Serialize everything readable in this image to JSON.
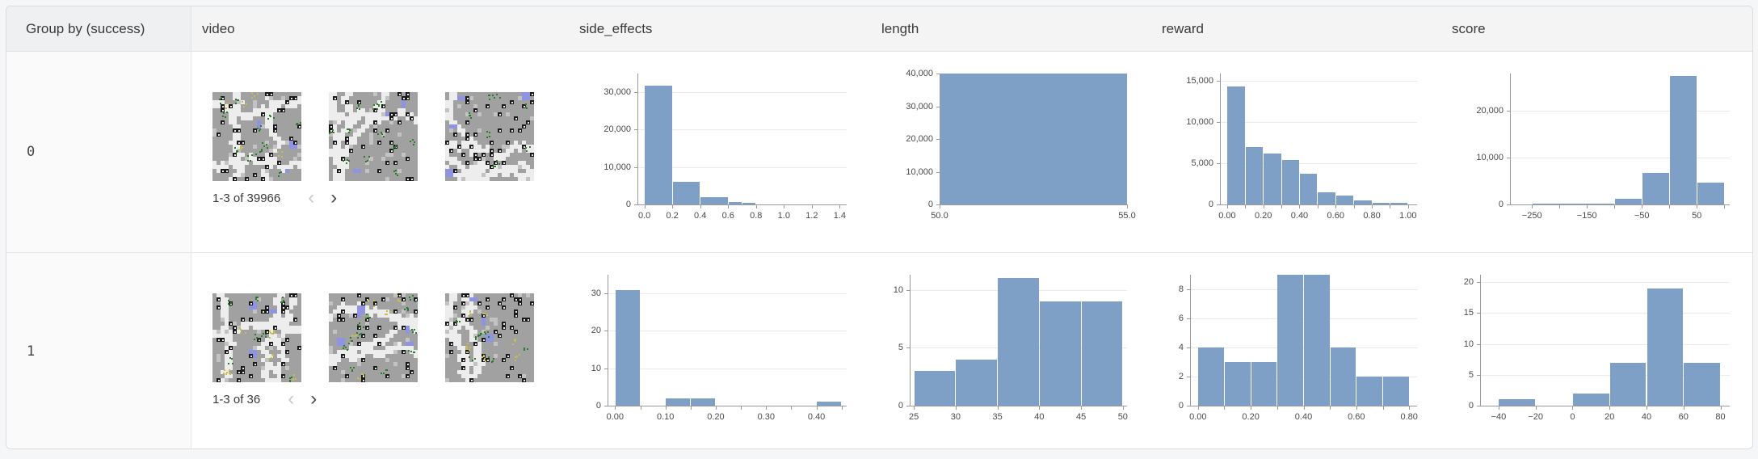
{
  "table": {
    "columns": [
      "Group by (success)",
      "video",
      "side_effects",
      "length",
      "reward",
      "score"
    ],
    "rows": [
      {
        "group": "0",
        "video": {
          "pagination": "1-3 of 39966",
          "thumbnails": 3,
          "prev_enabled": false,
          "next_enabled": true
        }
      },
      {
        "group": "1",
        "video": {
          "pagination": "1-3 of 36",
          "thumbnails": 3,
          "prev_enabled": false,
          "next_enabled": true
        }
      }
    ]
  },
  "icons": {
    "prev_page": "‹",
    "next_page": "›"
  },
  "colors": {
    "histogram_bar": "#7fa0c6",
    "axis": "#9a9a9a",
    "gridline": "#ebebeb",
    "group_column_bg": "#fafafa",
    "header_bg": "#f4f4f5"
  },
  "chart_data": [
    {
      "type": "bar",
      "group": "0",
      "column": "side_effects",
      "bins": [
        [
          0.0,
          0.2,
          31700
        ],
        [
          0.2,
          0.4,
          6100
        ],
        [
          0.4,
          0.6,
          2000
        ],
        [
          0.6,
          0.7,
          650
        ],
        [
          0.7,
          0.8,
          430
        ]
      ],
      "xlim": [
        -0.05,
        1.45
      ],
      "ylim": [
        0,
        35000
      ],
      "xticks": {
        "values": [
          0.0,
          0.2,
          0.4,
          0.6,
          0.8,
          1.0,
          1.2,
          1.4
        ],
        "labels": [
          "0.0",
          "0.2",
          "0.4",
          "0.6",
          "0.8",
          "1.0",
          "1.2",
          "1.4"
        ]
      },
      "yticks": {
        "values": [
          0,
          10000,
          20000,
          30000
        ],
        "labels": [
          "0",
          "10,000",
          "20,000",
          "30,000"
        ]
      },
      "xminor": []
    },
    {
      "type": "bar",
      "group": "0",
      "column": "length",
      "bins": [
        [
          50,
          55,
          40000
        ]
      ],
      "xlim": [
        50,
        55
      ],
      "ylim": [
        0,
        40000
      ],
      "xticks": {
        "values": [
          50,
          55
        ],
        "labels": [
          "50.0",
          "55.0"
        ]
      },
      "yticks": {
        "values": [
          0,
          10000,
          20000,
          30000,
          40000
        ],
        "labels": [
          "0",
          "10,000",
          "20,000",
          "30,000",
          "40,000"
        ]
      },
      "xminor": []
    },
    {
      "type": "bar",
      "group": "0",
      "column": "reward",
      "bins": [
        [
          0,
          0.1,
          14300
        ],
        [
          0.1,
          0.2,
          7000
        ],
        [
          0.2,
          0.3,
          6200
        ],
        [
          0.3,
          0.4,
          5400
        ],
        [
          0.4,
          0.5,
          3700
        ],
        [
          0.5,
          0.6,
          1500
        ],
        [
          0.6,
          0.7,
          1100
        ],
        [
          0.7,
          0.8,
          500
        ],
        [
          0.8,
          0.9,
          200
        ],
        [
          0.9,
          1.0,
          150
        ]
      ],
      "xlim": [
        -0.04,
        1.05
      ],
      "ylim": [
        0,
        15900
      ],
      "xticks": {
        "values": [
          0.0,
          0.2,
          0.4,
          0.6,
          0.8,
          1.0
        ],
        "labels": [
          "0.00",
          "0.20",
          "0.40",
          "0.60",
          "0.80",
          "1.00"
        ]
      },
      "yticks": {
        "values": [
          0,
          5000,
          10000,
          15000
        ],
        "labels": [
          "0",
          "5,000",
          "10,000",
          "15,000"
        ]
      },
      "xminor": [
        0.1,
        0.3,
        0.5,
        0.7,
        0.9
      ]
    },
    {
      "type": "bar",
      "group": "0",
      "column": "score",
      "bins": [
        [
          -250,
          -100,
          180
        ],
        [
          -100,
          -50,
          1200
        ],
        [
          -50,
          0,
          6700
        ],
        [
          0,
          50,
          27500
        ],
        [
          50,
          100,
          4700
        ]
      ],
      "xlim": [
        -290,
        110
      ],
      "ylim": [
        0,
        28000
      ],
      "xticks": {
        "values": [
          -250,
          -150,
          -50,
          50
        ],
        "labels": [
          "−250",
          "−150",
          "−50",
          "50"
        ]
      },
      "yticks": {
        "values": [
          0,
          10000,
          20000
        ],
        "labels": [
          "0",
          "10,000",
          "20,000"
        ]
      },
      "xminor": [
        -200,
        -100,
        0,
        100
      ]
    },
    {
      "type": "bar",
      "group": "1",
      "column": "side_effects",
      "bins": [
        [
          0,
          0.05,
          31
        ],
        [
          0.1,
          0.15,
          2
        ],
        [
          0.15,
          0.2,
          2
        ],
        [
          0.4,
          0.45,
          1
        ]
      ],
      "xlim": [
        -0.015,
        0.46
      ],
      "ylim": [
        0,
        35
      ],
      "xticks": {
        "values": [
          0.0,
          0.1,
          0.2,
          0.3,
          0.4
        ],
        "labels": [
          "0.00",
          "0.10",
          "0.20",
          "0.30",
          "0.40"
        ]
      },
      "yticks": {
        "values": [
          0,
          10,
          20,
          30
        ],
        "labels": [
          "0",
          "10",
          "20",
          "30"
        ]
      },
      "xminor": [
        0.05,
        0.15,
        0.25,
        0.35,
        0.45
      ]
    },
    {
      "type": "bar",
      "group": "1",
      "column": "length",
      "bins": [
        [
          25,
          30,
          3
        ],
        [
          30,
          35,
          4
        ],
        [
          35,
          40,
          11
        ],
        [
          40,
          45,
          9
        ],
        [
          45,
          50,
          9
        ]
      ],
      "xlim": [
        24.5,
        50.5
      ],
      "ylim": [
        0,
        11.3
      ],
      "xticks": {
        "values": [
          25,
          30,
          35,
          40,
          45,
          50
        ],
        "labels": [
          "25",
          "30",
          "35",
          "40",
          "45",
          "50"
        ]
      },
      "yticks": {
        "values": [
          0,
          5,
          10
        ],
        "labels": [
          "0",
          "5",
          "10"
        ]
      },
      "xminor": []
    },
    {
      "type": "bar",
      "group": "1",
      "column": "reward",
      "bins": [
        [
          0,
          0.1,
          4
        ],
        [
          0.1,
          0.2,
          3
        ],
        [
          0.2,
          0.3,
          3
        ],
        [
          0.3,
          0.4,
          9
        ],
        [
          0.4,
          0.5,
          9
        ],
        [
          0.5,
          0.6,
          4
        ],
        [
          0.6,
          0.7,
          2
        ],
        [
          0.7,
          0.8,
          2
        ]
      ],
      "xlim": [
        -0.03,
        0.83
      ],
      "ylim": [
        0,
        9
      ],
      "xticks": {
        "values": [
          0.0,
          0.2,
          0.4,
          0.6,
          0.8
        ],
        "labels": [
          "0.00",
          "0.20",
          "0.40",
          "0.60",
          "0.80"
        ]
      },
      "yticks": {
        "values": [
          0,
          2,
          4,
          6,
          8
        ],
        "labels": [
          "0",
          "2",
          "4",
          "6",
          "8"
        ]
      },
      "xminor": [
        0.1,
        0.3,
        0.5,
        0.7
      ]
    },
    {
      "type": "bar",
      "group": "1",
      "column": "score",
      "bins": [
        [
          -40,
          -20,
          1
        ],
        [
          0,
          20,
          2
        ],
        [
          20,
          40,
          7
        ],
        [
          40,
          60,
          19
        ],
        [
          60,
          80,
          7
        ]
      ],
      "xlim": [
        -50,
        85
      ],
      "ylim": [
        0,
        21.2
      ],
      "xticks": {
        "values": [
          -40,
          -20,
          0,
          20,
          40,
          60,
          80
        ],
        "labels": [
          "−40",
          "−20",
          "0",
          "20",
          "40",
          "60",
          "80"
        ]
      },
      "yticks": {
        "values": [
          0,
          5,
          10,
          15,
          20
        ],
        "labels": [
          "0",
          "5",
          "10",
          "15",
          "20"
        ]
      },
      "xminor": []
    }
  ]
}
